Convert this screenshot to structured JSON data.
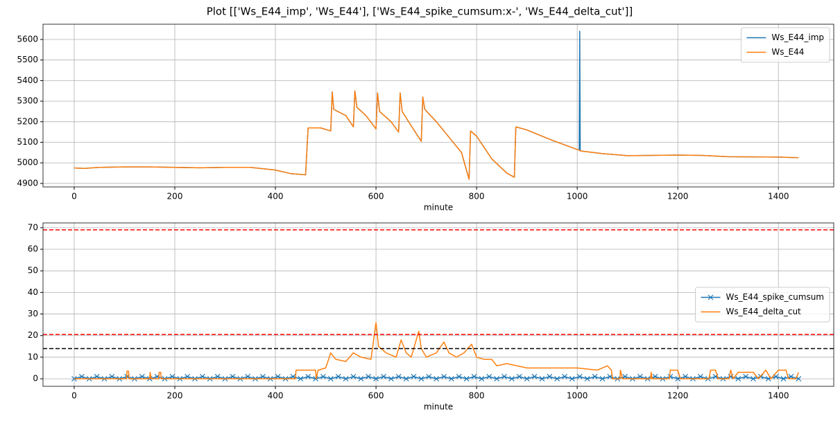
{
  "title": "Plot [['Ws_E44_imp', 'Ws_E44'], ['Ws_E44_spike_cumsum:x-', 'Ws_E44_delta_cut']]",
  "chart_data": [
    {
      "type": "line",
      "xlabel": "minute",
      "grid": true,
      "legend": "upper right",
      "xlim": [
        -62,
        1510
      ],
      "xticks": [
        0,
        200,
        400,
        600,
        800,
        1000,
        1200,
        1400
      ],
      "ylim": [
        4883,
        5674
      ],
      "yticks": [
        4900,
        5000,
        5100,
        5200,
        5300,
        5400,
        5500,
        5600
      ],
      "x": [
        0,
        20,
        50,
        100,
        150,
        200,
        250,
        300,
        350,
        400,
        430,
        460,
        465,
        490,
        510,
        513,
        516,
        540,
        555,
        558,
        562,
        580,
        600,
        603,
        607,
        630,
        645,
        648,
        652,
        670,
        690,
        693,
        697,
        720,
        750,
        770,
        785,
        788,
        800,
        830,
        860,
        875,
        878,
        900,
        950,
        1000,
        1004,
        1005,
        1006,
        1050,
        1100,
        1200,
        1250,
        1300,
        1400,
        1440
      ],
      "series": [
        {
          "name": "Ws_E44_imp",
          "color": "#1f77b4",
          "values": [
            4975,
            4973,
            4978,
            4980,
            4980,
            4978,
            4976,
            4978,
            4978,
            4965,
            4948,
            4942,
            5170,
            5170,
            5155,
            5345,
            5260,
            5230,
            5175,
            5350,
            5270,
            5230,
            5165,
            5340,
            5250,
            5200,
            5150,
            5340,
            5250,
            5180,
            5105,
            5320,
            5260,
            5200,
            5110,
            5050,
            4920,
            5155,
            5130,
            5020,
            4950,
            4930,
            5175,
            5160,
            5110,
            5065,
            5062,
            5640,
            5058,
            5045,
            5035,
            5038,
            5036,
            5030,
            5028,
            5025
          ]
        },
        {
          "name": "Ws_E44",
          "color": "#ff7f0e",
          "values": [
            4975,
            4973,
            4978,
            4980,
            4980,
            4978,
            4976,
            4978,
            4978,
            4965,
            4948,
            4942,
            5170,
            5170,
            5155,
            5345,
            5260,
            5230,
            5175,
            5350,
            5270,
            5230,
            5165,
            5340,
            5250,
            5200,
            5150,
            5340,
            5250,
            5180,
            5105,
            5320,
            5260,
            5200,
            5110,
            5050,
            4920,
            5155,
            5130,
            5020,
            4950,
            4930,
            5175,
            5160,
            5110,
            5065,
            5062,
            5060,
            5058,
            5045,
            5035,
            5038,
            5036,
            5030,
            5028,
            5025
          ]
        }
      ]
    },
    {
      "type": "line",
      "xlabel": "minute",
      "grid": true,
      "legend": "center right",
      "xlim": [
        -62,
        1510
      ],
      "xticks": [
        0,
        200,
        400,
        600,
        800,
        1000,
        1200,
        1400
      ],
      "ylim": [
        -3.5,
        72.2
      ],
      "yticks": [
        0,
        10,
        20,
        30,
        40,
        50,
        60,
        70
      ],
      "hlines": [
        {
          "value": 69,
          "color": "#ff0000"
        },
        {
          "value": 20.5,
          "color": "#ff0000"
        },
        {
          "value": 14,
          "color": "#000000"
        }
      ],
      "series": [
        {
          "name": "Ws_E44_spike_cumsum",
          "color": "#1f77b4",
          "marker": "x",
          "x": [
            0,
            15,
            30,
            45,
            60,
            75,
            90,
            105,
            120,
            135,
            150,
            165,
            180,
            195,
            210,
            225,
            240,
            255,
            270,
            285,
            300,
            315,
            330,
            345,
            360,
            375,
            390,
            405,
            420,
            435,
            450,
            465,
            480,
            495,
            510,
            525,
            540,
            555,
            570,
            585,
            600,
            615,
            630,
            645,
            660,
            675,
            690,
            705,
            720,
            735,
            750,
            765,
            780,
            795,
            810,
            825,
            840,
            855,
            870,
            885,
            900,
            915,
            930,
            945,
            960,
            975,
            990,
            1005,
            1020,
            1035,
            1050,
            1065,
            1080,
            1095,
            1110,
            1125,
            1140,
            1155,
            1170,
            1185,
            1200,
            1215,
            1230,
            1245,
            1260,
            1275,
            1290,
            1305,
            1320,
            1335,
            1350,
            1365,
            1380,
            1395,
            1410,
            1425,
            1440
          ],
          "values": [
            0,
            1,
            0,
            1,
            0,
            1,
            0,
            1,
            0,
            1,
            0,
            1,
            0,
            1,
            0,
            1,
            0,
            1,
            0,
            1,
            0,
            1,
            0,
            1,
            0,
            1,
            0,
            1,
            0,
            1,
            0,
            1,
            0,
            1,
            0,
            1,
            0,
            1,
            0,
            1,
            0,
            1,
            0,
            1,
            0,
            1,
            0,
            1,
            0,
            1,
            0,
            1,
            0,
            1,
            0,
            1,
            0,
            1,
            0,
            1,
            0,
            1,
            0,
            1,
            0,
            1,
            0,
            1,
            0,
            1,
            0,
            1,
            0,
            1,
            0,
            1,
            0,
            1,
            0,
            1,
            0,
            1,
            0,
            1,
            0,
            1,
            0,
            1,
            0,
            1,
            0,
            1,
            0,
            1,
            0,
            1,
            0
          ]
        },
        {
          "name": "Ws_E44_delta_cut",
          "color": "#ff7f0e",
          "x": [
            0,
            104,
            105,
            108,
            109,
            150,
            151,
            153,
            168,
            169,
            172,
            173,
            440,
            441,
            445,
            470,
            480,
            481,
            485,
            500,
            510,
            520,
            540,
            555,
            570,
            590,
            600,
            605,
            620,
            640,
            650,
            660,
            670,
            685,
            690,
            700,
            720,
            735,
            745,
            760,
            775,
            790,
            800,
            815,
            830,
            840,
            860,
            880,
            900,
            950,
            1000,
            1040,
            1060,
            1068,
            1070,
            1085,
            1086,
            1090,
            1146,
            1147,
            1149,
            1183,
            1185,
            1200,
            1205,
            1262,
            1265,
            1275,
            1280,
            1302,
            1305,
            1310,
            1320,
            1350,
            1360,
            1375,
            1385,
            1400,
            1415,
            1420,
            1435,
            1440
          ],
          "values": [
            0,
            0,
            3.5,
            3.5,
            0,
            0,
            3,
            0,
            0,
            3,
            3,
            0,
            0,
            4,
            4,
            4,
            4,
            0,
            4,
            5,
            12,
            9,
            8,
            12,
            10,
            9,
            26,
            15,
            12,
            10,
            18,
            12,
            10,
            22,
            14,
            10,
            12,
            17,
            12,
            10,
            12,
            16,
            10,
            9,
            9,
            6,
            7,
            6,
            5,
            5,
            5,
            4,
            6,
            4,
            0,
            0,
            4,
            0,
            0,
            3,
            0,
            0,
            4,
            4,
            0,
            0,
            4,
            4,
            0,
            0,
            4,
            0,
            3,
            3,
            0,
            4,
            0,
            4,
            4,
            0,
            0,
            3
          ]
        }
      ]
    }
  ]
}
